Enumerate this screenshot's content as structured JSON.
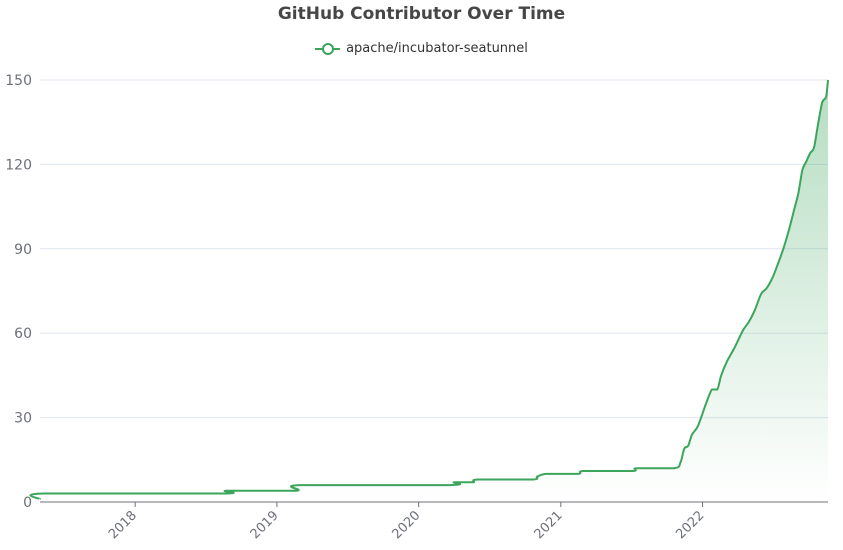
{
  "chart_data": {
    "type": "area",
    "title": "GitHub Contributor Over Time",
    "xlabel": "",
    "ylabel": "",
    "ylim": [
      0,
      150
    ],
    "y_ticks": [
      0,
      30,
      60,
      90,
      120,
      150
    ],
    "x_ticks": [
      "2018",
      "2019",
      "2020",
      "2021",
      "2022"
    ],
    "x_range": [
      "2017-05-01",
      "2022-11-20"
    ],
    "grid": true,
    "legend_position": "top-center",
    "series": [
      {
        "name": "apache/incubator-seatunnel",
        "color": "#3ba55c",
        "points": [
          [
            "2017-05-01",
            1
          ],
          [
            "2017-05-10",
            3
          ],
          [
            "2018-08-15",
            3
          ],
          [
            "2018-08-25",
            4
          ],
          [
            "2019-02-20",
            4
          ],
          [
            "2019-03-01",
            6
          ],
          [
            "2020-03-20",
            6
          ],
          [
            "2020-04-01",
            7
          ],
          [
            "2020-05-20",
            7
          ],
          [
            "2020-06-01",
            8
          ],
          [
            "2020-10-20",
            8
          ],
          [
            "2020-11-01",
            9
          ],
          [
            "2020-11-25",
            10
          ],
          [
            "2021-02-15",
            10
          ],
          [
            "2021-03-01",
            11
          ],
          [
            "2021-07-05",
            11
          ],
          [
            "2021-07-15",
            12
          ],
          [
            "2021-10-20",
            12
          ],
          [
            "2021-11-05",
            14
          ],
          [
            "2021-11-15",
            19
          ],
          [
            "2021-11-25",
            20
          ],
          [
            "2021-12-05",
            24
          ],
          [
            "2021-12-20",
            27
          ],
          [
            "2022-01-10",
            35
          ],
          [
            "2022-01-25",
            40
          ],
          [
            "2022-02-08",
            40
          ],
          [
            "2022-02-18",
            45
          ],
          [
            "2022-03-05",
            50
          ],
          [
            "2022-03-25",
            55
          ],
          [
            "2022-04-15",
            61
          ],
          [
            "2022-04-30",
            64
          ],
          [
            "2022-05-15",
            68
          ],
          [
            "2022-06-01",
            74
          ],
          [
            "2022-06-15",
            76
          ],
          [
            "2022-07-01",
            80
          ],
          [
            "2022-07-15",
            85
          ],
          [
            "2022-07-28",
            90
          ],
          [
            "2022-08-10",
            96
          ],
          [
            "2022-08-25",
            104
          ],
          [
            "2022-09-05",
            110
          ],
          [
            "2022-09-15",
            118
          ],
          [
            "2022-09-25",
            121
          ],
          [
            "2022-10-05",
            124
          ],
          [
            "2022-10-15",
            126
          ],
          [
            "2022-10-25",
            134
          ],
          [
            "2022-11-05",
            142
          ],
          [
            "2022-11-15",
            144
          ],
          [
            "2022-11-20",
            150
          ]
        ]
      }
    ]
  }
}
